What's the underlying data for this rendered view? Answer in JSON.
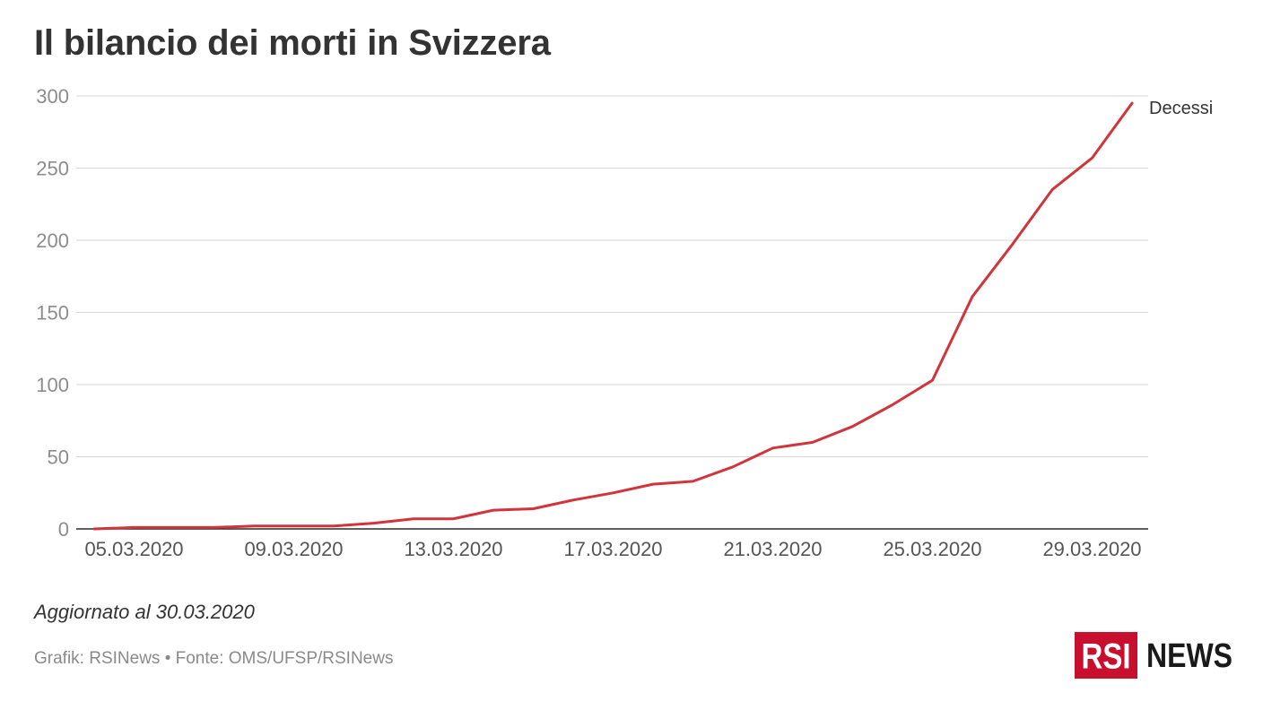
{
  "chart_data": {
    "type": "line",
    "title": "Il bilancio dei morti in Svizzera",
    "x": [
      "04.03.2020",
      "05.03.2020",
      "06.03.2020",
      "07.03.2020",
      "08.03.2020",
      "09.03.2020",
      "10.03.2020",
      "11.03.2020",
      "12.03.2020",
      "13.03.2020",
      "14.03.2020",
      "15.03.2020",
      "16.03.2020",
      "17.03.2020",
      "18.03.2020",
      "19.03.2020",
      "20.03.2020",
      "21.03.2020",
      "22.03.2020",
      "23.03.2020",
      "24.03.2020",
      "25.03.2020",
      "26.03.2020",
      "27.03.2020",
      "28.03.2020",
      "29.03.2020",
      "30.03.2020"
    ],
    "x_ticks": [
      "05.03.2020",
      "09.03.2020",
      "13.03.2020",
      "17.03.2020",
      "21.03.2020",
      "25.03.2020",
      "29.03.2020"
    ],
    "y_ticks": [
      0,
      50,
      100,
      150,
      200,
      250,
      300
    ],
    "ylim": [
      0,
      300
    ],
    "grid": true,
    "legend": "direct-label-right",
    "series": [
      {
        "name": "Decessi",
        "color": "#d1343b",
        "values": [
          0,
          1,
          1,
          1,
          2,
          2,
          2,
          4,
          7,
          7,
          13,
          14,
          20,
          25,
          31,
          33,
          43,
          56,
          60,
          71,
          86,
          103,
          161,
          197,
          235,
          257,
          295
        ]
      }
    ]
  },
  "note": "Aggiornato al 30.03.2020",
  "footer": "Grafik: RSINews • Fonte: OMS/UFSP/RSINews",
  "logo": {
    "brand": "RSI",
    "name": "NEWS",
    "brand_color": "#c8102e"
  }
}
